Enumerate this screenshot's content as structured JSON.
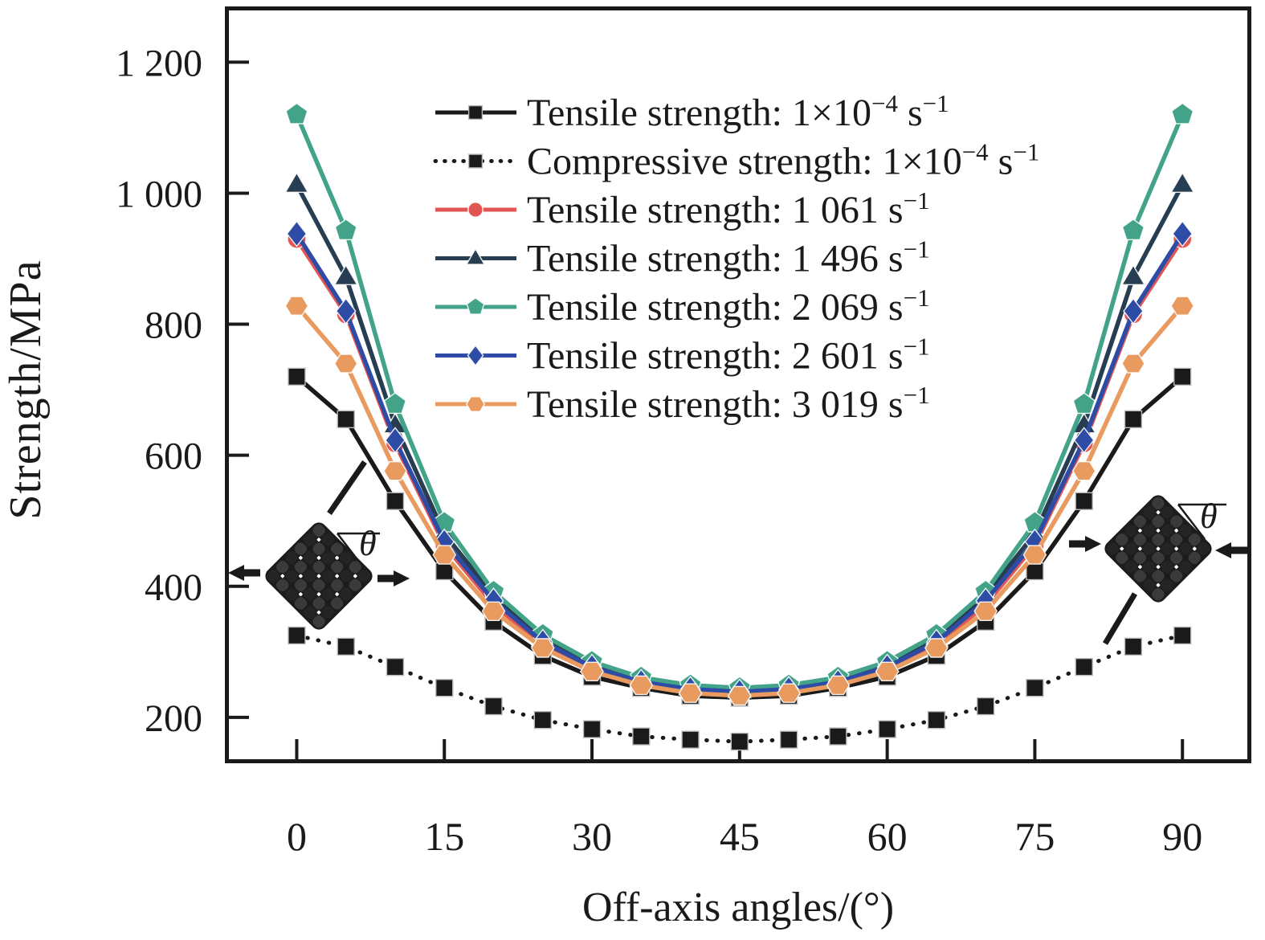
{
  "figure": {
    "background": "#ffffff",
    "frame_color": "#1a1a1a"
  },
  "chart_data": {
    "type": "line",
    "title": "",
    "xlabel": "Off-axis angles/(°)",
    "ylabel": "Strength/MPa",
    "xlim": [
      -7.3,
      97
    ],
    "ylim": [
      130,
      1285
    ],
    "xticks": [
      0,
      15,
      30,
      45,
      60,
      75,
      90
    ],
    "xtick_labels": [
      "0",
      "15",
      "30",
      "45",
      "60",
      "75",
      "90"
    ],
    "yticks": [
      200,
      400,
      600,
      800,
      1000,
      1200
    ],
    "ytick_labels": [
      "200",
      "400",
      "600",
      "800",
      "1 000",
      "1 200"
    ],
    "grid": false,
    "legend_position": "upper-left-of-center, no box",
    "angles": [
      0,
      5,
      10,
      15,
      20,
      25,
      30,
      35,
      40,
      45,
      50,
      55,
      60,
      65,
      70,
      75,
      80,
      85,
      90
    ],
    "series": [
      {
        "name": "Tensile strength: 1×10^{−4} s^{−1}",
        "color": "#1a1a1a",
        "marker": "square",
        "linestyle": "solid",
        "values": [
          720,
          655,
          530,
          423,
          346,
          294,
          262,
          245,
          233,
          230,
          233,
          245,
          262,
          294,
          346,
          423,
          530,
          655,
          720
        ]
      },
      {
        "name": "Compressive strength: 1×10^{−4} s^{−1}",
        "color": "#1a1a1a",
        "marker": "square",
        "linestyle": "dotted",
        "values": [
          325,
          308,
          277,
          245,
          217,
          196,
          182,
          171,
          166,
          163,
          166,
          171,
          182,
          196,
          217,
          245,
          277,
          308,
          325
        ]
      },
      {
        "name": "Tensile strength: 1 061 s^{−1}",
        "color": "#e15652",
        "marker": "circle",
        "linestyle": "solid",
        "values": [
          930,
          815,
          618,
          463,
          372,
          311,
          273,
          251,
          240,
          236,
          240,
          251,
          273,
          311,
          372,
          463,
          618,
          815,
          930
        ]
      },
      {
        "name": "Tensile strength: 1 496 s^{−1}",
        "color": "#273d52",
        "marker": "triangle",
        "linestyle": "solid",
        "values": [
          1013,
          872,
          646,
          480,
          386,
          320,
          281,
          257,
          246,
          242,
          246,
          257,
          281,
          320,
          386,
          480,
          646,
          872,
          1013
        ]
      },
      {
        "name": "Tensile strength: 2 069 s^{−1}",
        "color": "#42a389",
        "marker": "pentagon",
        "linestyle": "solid",
        "values": [
          1120,
          943,
          678,
          497,
          392,
          326,
          285,
          261,
          249,
          245,
          249,
          261,
          285,
          326,
          392,
          497,
          678,
          943,
          1120
        ]
      },
      {
        "name": "Tensile strength: 2 601 s^{−1}",
        "color": "#2e4ca6",
        "marker": "diamond",
        "linestyle": "solid",
        "values": [
          938,
          820,
          623,
          468,
          378,
          315,
          277,
          254,
          243,
          239,
          243,
          254,
          277,
          315,
          378,
          468,
          623,
          820,
          938
        ]
      },
      {
        "name": "Tensile strength: 3 019 s^{−1}",
        "color": "#e89a5f",
        "marker": "hexagon",
        "linestyle": "solid",
        "values": [
          828,
          740,
          576,
          448,
          362,
          306,
          270,
          249,
          237,
          233,
          237,
          249,
          270,
          306,
          362,
          448,
          576,
          740,
          828
        ]
      }
    ],
    "annotations": {
      "insets": [
        {
          "id": "tension",
          "theta_label": "θ",
          "description": "woven fabric specimen, arrows pulling outward (tension)"
        },
        {
          "id": "compression",
          "theta_label": "θ",
          "description": "woven fabric specimen, arrows pushing inward (compression)"
        }
      ]
    }
  }
}
